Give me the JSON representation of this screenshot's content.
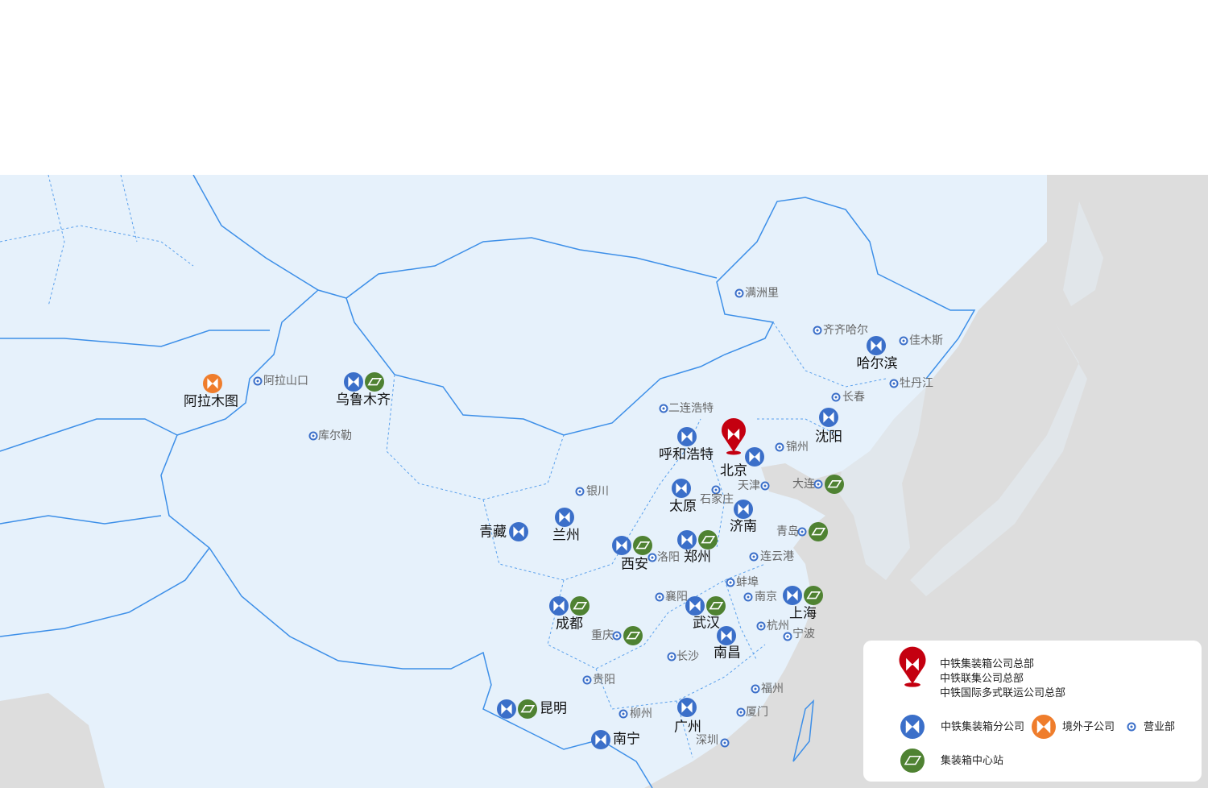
{
  "colors": {
    "branch": "#3b6fc9",
    "center": "#4f8232",
    "overseas": "#ef7d2c",
    "hq": "#c40010",
    "land": "#e6f1fb",
    "other": "#dddddd",
    "border": "#3d8fe8"
  },
  "markers": [
    {
      "name": "乌鲁木齐",
      "type": "branch+center"
    },
    {
      "name": "哈尔滨",
      "type": "branch"
    },
    {
      "name": "沈阳",
      "type": "branch"
    },
    {
      "name": "呼和浩特",
      "type": "branch"
    },
    {
      "name": "北京",
      "type": "hq+branch"
    },
    {
      "name": "太原",
      "type": "branch"
    },
    {
      "name": "济南",
      "type": "branch"
    },
    {
      "name": "青藏",
      "type": "branch"
    },
    {
      "name": "兰州",
      "type": "branch"
    },
    {
      "name": "西安",
      "type": "branch+center"
    },
    {
      "name": "郑州",
      "type": "branch+center"
    },
    {
      "name": "成都",
      "type": "branch+center"
    },
    {
      "name": "武汉",
      "type": "branch+center"
    },
    {
      "name": "上海",
      "type": "branch+center"
    },
    {
      "name": "南昌",
      "type": "branch"
    },
    {
      "name": "广州",
      "type": "branch"
    },
    {
      "name": "南宁",
      "type": "branch"
    },
    {
      "name": "昆明",
      "type": "branch+center"
    },
    {
      "name": "阿拉木图",
      "type": "overseas"
    },
    {
      "name": "大连",
      "type": "sales+center"
    },
    {
      "name": "青岛",
      "type": "sales+center"
    },
    {
      "name": "重庆",
      "type": "sales+center"
    },
    {
      "name": "满洲里",
      "type": "sales"
    },
    {
      "name": "齐齐哈尔",
      "type": "sales"
    },
    {
      "name": "佳木斯",
      "type": "sales"
    },
    {
      "name": "牡丹江",
      "type": "sales"
    },
    {
      "name": "长春",
      "type": "sales"
    },
    {
      "name": "锦州",
      "type": "sales"
    },
    {
      "name": "二连浩特",
      "type": "sales"
    },
    {
      "name": "阿拉山口",
      "type": "sales"
    },
    {
      "name": "库尔勒",
      "type": "sales"
    },
    {
      "name": "银川",
      "type": "sales"
    },
    {
      "name": "天津",
      "type": "sales"
    },
    {
      "name": "石家庄",
      "type": "sales"
    },
    {
      "name": "洛阳",
      "type": "sales"
    },
    {
      "name": "连云港",
      "type": "sales"
    },
    {
      "name": "蚌埠",
      "type": "sales"
    },
    {
      "name": "南京",
      "type": "sales"
    },
    {
      "name": "襄阳",
      "type": "sales"
    },
    {
      "name": "杭州",
      "type": "sales"
    },
    {
      "name": "宁波",
      "type": "sales"
    },
    {
      "name": "长沙",
      "type": "sales"
    },
    {
      "name": "贵阳",
      "type": "sales"
    },
    {
      "name": "福州",
      "type": "sales"
    },
    {
      "name": "厦门",
      "type": "sales"
    },
    {
      "name": "柳州",
      "type": "sales"
    },
    {
      "name": "深圳",
      "type": "sales"
    }
  ],
  "legend": {
    "hq_lines": [
      "中铁集装箱公司总部",
      "中铁联集公司总部",
      "中铁国际多式联运公司总部"
    ],
    "branch": "中铁集装箱分公司",
    "overseas": "境外子公司",
    "sales": "营业部",
    "center": "集装箱中心站"
  }
}
